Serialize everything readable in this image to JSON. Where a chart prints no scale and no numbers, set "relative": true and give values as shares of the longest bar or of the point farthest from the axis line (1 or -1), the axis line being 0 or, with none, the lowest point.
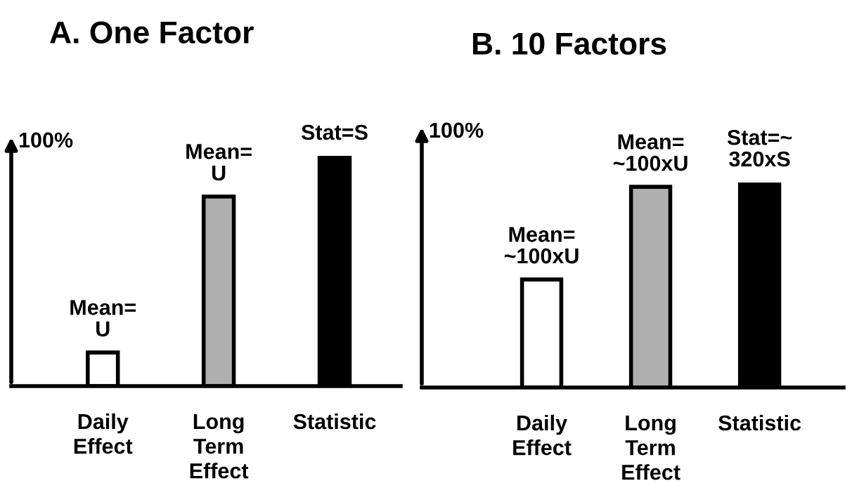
{
  "chart_data": [
    {
      "type": "bar",
      "title": "A. One Factor",
      "ylabel": "100%",
      "relative": true,
      "categories": [
        "Daily\nEffect",
        "Long\nTerm\nEffect",
        "Statistic"
      ],
      "values": [
        0.146,
        0.823,
        1
      ],
      "colors": [
        "#ffffff",
        "#b0b0b0",
        "#000000"
      ],
      "annotations": [
        {
          "text": "Mean=\nU",
          "x": "Daily\nEffect",
          "y": 0.146
        },
        {
          "text": "Mean=\nU",
          "x": "Long\nTerm\nEffect",
          "y": 0.823
        },
        {
          "text": "Stat=S",
          "x": "Statistic",
          "y": 1
        }
      ]
    },
    {
      "type": "bar",
      "title": "B. 10 Factors",
      "ylabel": "100%",
      "relative": true,
      "categories": [
        "Daily\nEffect",
        "Long\nTerm\nEffect",
        "Statistic"
      ],
      "values": [
        0.527,
        0.979,
        1
      ],
      "colors": [
        "#ffffff",
        "#b0b0b0",
        "#000000"
      ],
      "annotations": [
        {
          "text": "Mean=\n~100xU",
          "x": "Daily\nEffect",
          "y": 0.527
        },
        {
          "text": "Mean=\n~100xU",
          "x": "Long\nTerm\nEffect",
          "y": 0.979
        },
        {
          "text": "Stat=~\n320xS",
          "x": "Statistic",
          "y": 1
        }
      ]
    }
  ]
}
